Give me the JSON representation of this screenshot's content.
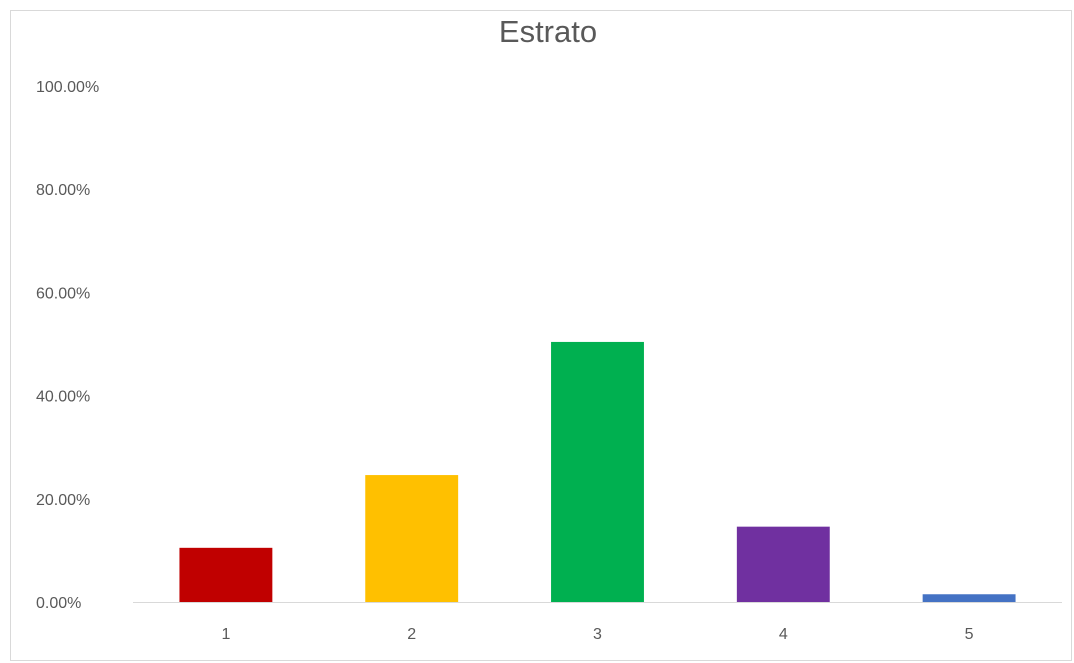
{
  "chart_data": {
    "type": "bar",
    "title": "Estrato",
    "xlabel": "",
    "ylabel": "",
    "categories": [
      "1",
      "2",
      "3",
      "4",
      "5"
    ],
    "values": [
      10.5,
      24.6,
      50.4,
      14.6,
      1.5
    ],
    "colors": [
      "#c00000",
      "#ffc000",
      "#00b050",
      "#7030a0",
      "#4472c4"
    ],
    "ylim": [
      0,
      100
    ],
    "yticks": [
      0,
      20,
      40,
      60,
      80,
      100
    ],
    "ytick_labels": [
      "0.00%",
      "20.00%",
      "40.00%",
      "60.00%",
      "80.00%",
      "100.00%"
    ],
    "grid": false,
    "legend": "none"
  }
}
